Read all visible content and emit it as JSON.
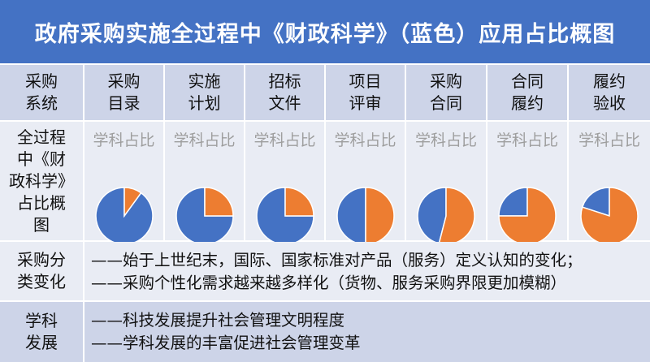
{
  "title": "政府采购实施全过程中《财政科学》（蓝色）应用占比概图",
  "header": {
    "row_label": [
      "采购",
      "系统"
    ],
    "columns": [
      [
        "采购",
        "目录"
      ],
      [
        "实施",
        "计划"
      ],
      [
        "招标",
        "文件"
      ],
      [
        "项目",
        "评审"
      ],
      [
        "采购",
        "合同"
      ],
      [
        "合同",
        "履约"
      ],
      [
        "履约",
        "验收"
      ]
    ]
  },
  "pie_row": {
    "row_label": [
      "全过程",
      "中《财",
      "政科学》",
      "占比概",
      "图"
    ],
    "caption": "学科占比"
  },
  "colors": {
    "title_bg": "#4472c4",
    "header_bg": "#cdd4e8",
    "body_bg": "#e9ecf4",
    "blue": "#4472c4",
    "orange": "#ed7d31"
  },
  "chart_data": {
    "type": "pie",
    "categories": [
      "采购目录",
      "实施计划",
      "招标文件",
      "项目评审",
      "采购合同",
      "合同履约",
      "履约验收"
    ],
    "series": [
      {
        "name": "蓝色",
        "values": [
          0.9,
          0.75,
          0.75,
          0.5,
          0.46,
          0.25,
          0.2
        ]
      },
      {
        "name": "",
        "values": [
          0.1,
          0.25,
          0.25,
          0.5,
          0.54,
          0.75,
          0.8
        ]
      }
    ]
  },
  "classification": {
    "row_label": [
      "采购分",
      "类变化"
    ],
    "lines": [
      "——始于上世纪末，国际、国家标准对产品（服务）定义认知的变化；",
      "——采购个性化需求越来越多样化（货物、服务采购界限更加模糊）"
    ]
  },
  "discipline": {
    "row_label": [
      "学科",
      "发展"
    ],
    "lines": [
      "——科技发展提升社会管理文明程度",
      "——学科发展的丰富促进社会管理变革"
    ]
  }
}
